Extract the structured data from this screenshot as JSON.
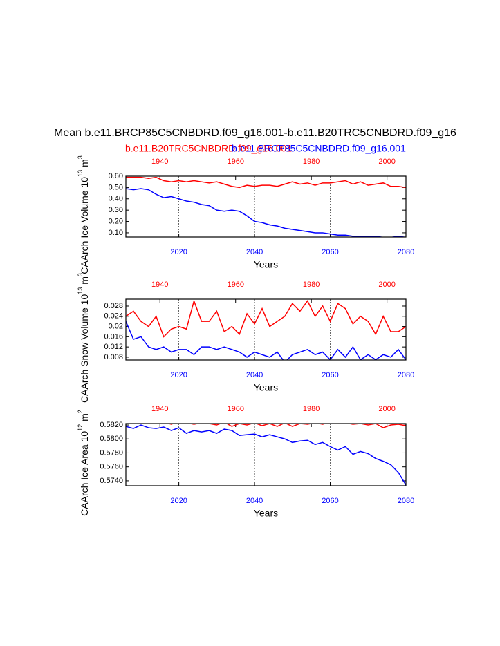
{
  "header": {
    "title": "Mean b.e11.BRCP85C5CNBDRD.f09_g16.001-b.e11.B20TRC5CNBDRD.f09_g16",
    "subtitles": [
      {
        "text": "b.e11.B20TRC5CNBDRD.f09_g16.001",
        "color": "#ff0000"
      },
      {
        "text": "b.e11.BRCP85C5CNBDRD.f09_g16.001",
        "color": "#0000ff"
      }
    ]
  },
  "chart_data": [
    {
      "type": "line",
      "ylabel": "CAArch Ice Volume 10",
      "ylabel_exponent": "13",
      "ylabel_unit": "m",
      "ylabel_unit_exponent": "3",
      "xlabel": "Years",
      "xlim": [
        2006,
        2080
      ],
      "xticks": [
        2020,
        2040,
        2060,
        2080
      ],
      "xtick_color": "#0000ff",
      "x2lim": [
        1931,
        2005
      ],
      "x2ticks": [
        1940,
        1960,
        1980,
        2000
      ],
      "x2tick_color": "#ff0000",
      "ylim": [
        0.063,
        0.6
      ],
      "yticks": [
        {
          "value": 0.1,
          "label": "0.10"
        },
        {
          "value": 0.2,
          "label": "0.20"
        },
        {
          "value": 0.3,
          "label": "0.30"
        },
        {
          "value": 0.4,
          "label": "0.40"
        },
        {
          "value": 0.5,
          "label": "0.50"
        },
        {
          "value": 0.6,
          "label": "0.60"
        }
      ],
      "grid": true,
      "series": [
        {
          "color": "#ff0000",
          "axis": "x2",
          "x": [
            1931,
            1933,
            1935,
            1937,
            1939,
            1941,
            1943,
            1945,
            1947,
            1949,
            1951,
            1953,
            1955,
            1957,
            1959,
            1961,
            1963,
            1965,
            1967,
            1969,
            1971,
            1973,
            1975,
            1977,
            1979,
            1981,
            1983,
            1985,
            1987,
            1989,
            1991,
            1993,
            1995,
            1997,
            1999,
            2001,
            2003,
            2005
          ],
          "values": [
            0.59,
            0.59,
            0.59,
            0.58,
            0.59,
            0.56,
            0.55,
            0.56,
            0.55,
            0.56,
            0.55,
            0.54,
            0.55,
            0.53,
            0.51,
            0.5,
            0.52,
            0.51,
            0.52,
            0.52,
            0.51,
            0.53,
            0.55,
            0.53,
            0.54,
            0.52,
            0.54,
            0.54,
            0.55,
            0.56,
            0.53,
            0.55,
            0.52,
            0.53,
            0.54,
            0.51,
            0.51,
            0.5
          ]
        },
        {
          "color": "#0000ff",
          "x": [
            2006,
            2008,
            2010,
            2012,
            2014,
            2016,
            2018,
            2020,
            2022,
            2024,
            2026,
            2028,
            2030,
            2032,
            2034,
            2036,
            2038,
            2040,
            2042,
            2044,
            2046,
            2048,
            2050,
            2052,
            2054,
            2056,
            2058,
            2060,
            2062,
            2064,
            2066,
            2068,
            2070,
            2072,
            2074,
            2076,
            2078,
            2080
          ],
          "values": [
            0.49,
            0.48,
            0.49,
            0.48,
            0.44,
            0.41,
            0.42,
            0.4,
            0.38,
            0.37,
            0.35,
            0.34,
            0.3,
            0.29,
            0.3,
            0.29,
            0.25,
            0.2,
            0.19,
            0.17,
            0.16,
            0.14,
            0.13,
            0.12,
            0.11,
            0.1,
            0.1,
            0.09,
            0.08,
            0.08,
            0.07,
            0.07,
            0.07,
            0.07,
            0.06,
            0.06,
            0.07,
            0.06
          ]
        }
      ]
    },
    {
      "type": "line",
      "ylabel": "CAArch Snow Volume 10",
      "ylabel_exponent": "13",
      "ylabel_unit": "m",
      "ylabel_unit_exponent": "3",
      "xlabel": "Years",
      "xlim": [
        2006,
        2080
      ],
      "xticks": [
        2020,
        2040,
        2060,
        2080
      ],
      "xtick_color": "#0000ff",
      "x2lim": [
        1931,
        2005
      ],
      "x2ticks": [
        1940,
        1960,
        1980,
        2000
      ],
      "x2tick_color": "#ff0000",
      "ylim": [
        0.0069,
        0.0307
      ],
      "yticks": [
        0.008,
        0.012,
        0.016,
        0.02,
        {
          "value": 0.024,
          "label": "0.024"
        },
        0.028
      ],
      "grid": true,
      "series": [
        {
          "color": "#ff0000",
          "axis": "x2",
          "x": [
            1931,
            1933,
            1935,
            1937,
            1939,
            1941,
            1943,
            1945,
            1947,
            1949,
            1951,
            1953,
            1955,
            1957,
            1959,
            1961,
            1963,
            1965,
            1967,
            1969,
            1971,
            1973,
            1975,
            1977,
            1979,
            1981,
            1983,
            1985,
            1987,
            1989,
            1991,
            1993,
            1995,
            1997,
            1999,
            2001,
            2003,
            2005
          ],
          "values": [
            0.024,
            0.026,
            0.022,
            0.02,
            0.024,
            0.016,
            0.019,
            0.02,
            0.019,
            0.03,
            0.022,
            0.022,
            0.026,
            0.018,
            0.02,
            0.017,
            0.025,
            0.021,
            0.027,
            0.02,
            0.022,
            0.024,
            0.029,
            0.026,
            0.03,
            0.024,
            0.028,
            0.022,
            0.029,
            0.027,
            0.021,
            0.024,
            0.022,
            0.017,
            0.024,
            0.018,
            0.018,
            0.02
          ]
        },
        {
          "color": "#0000ff",
          "x": [
            2006,
            2008,
            2010,
            2012,
            2014,
            2016,
            2018,
            2020,
            2022,
            2024,
            2026,
            2028,
            2030,
            2032,
            2034,
            2036,
            2038,
            2040,
            2042,
            2044,
            2046,
            2048,
            2050,
            2052,
            2054,
            2056,
            2058,
            2060,
            2062,
            2064,
            2066,
            2068,
            2070,
            2072,
            2074,
            2076,
            2078,
            2080
          ],
          "values": [
            0.022,
            0.015,
            0.016,
            0.012,
            0.011,
            0.012,
            0.01,
            0.011,
            0.011,
            0.009,
            0.012,
            0.012,
            0.011,
            0.012,
            0.011,
            0.01,
            0.008,
            0.01,
            0.009,
            0.008,
            0.01,
            0.006,
            0.009,
            0.01,
            0.011,
            0.009,
            0.01,
            0.007,
            0.011,
            0.008,
            0.012,
            0.007,
            0.009,
            0.007,
            0.009,
            0.008,
            0.011,
            0.007
          ]
        }
      ]
    },
    {
      "type": "line",
      "ylabel": "CAArch Ice Area 10",
      "ylabel_exponent": "12",
      "ylabel_unit": "m",
      "ylabel_unit_exponent": "2",
      "xlabel": "Years",
      "xlim": [
        2006,
        2080
      ],
      "xticks": [
        2020,
        2040,
        2060,
        2080
      ],
      "xtick_color": "#0000ff",
      "x2lim": [
        1931,
        2005
      ],
      "x2ticks": [
        1940,
        1960,
        1980,
        2000
      ],
      "x2tick_color": "#ff0000",
      "ylim": [
        0.5733,
        0.5822
      ],
      "yticks": [
        {
          "value": 0.574,
          "label": "0.5740"
        },
        {
          "value": 0.576,
          "label": "0.5760"
        },
        {
          "value": 0.578,
          "label": "0.5780"
        },
        {
          "value": 0.58,
          "label": "0.5800"
        },
        {
          "value": 0.582,
          "label": "0.5820"
        }
      ],
      "grid": true,
      "series": [
        {
          "color": "#ff0000",
          "axis": "x2",
          "x": [
            1931,
            1933,
            1935,
            1937,
            1939,
            1941,
            1943,
            1945,
            1947,
            1949,
            1951,
            1953,
            1955,
            1957,
            1959,
            1961,
            1963,
            1965,
            1967,
            1969,
            1971,
            1973,
            1975,
            1977,
            1979,
            1981,
            1983,
            1985,
            1987,
            1989,
            1991,
            1993,
            1995,
            1997,
            1999,
            2001,
            2003,
            2005
          ],
          "values": [
            0.5823,
            0.5822,
            0.5824,
            0.5823,
            0.5822,
            0.5824,
            0.5821,
            0.5825,
            0.5823,
            0.5821,
            0.5823,
            0.5822,
            0.582,
            0.5824,
            0.5818,
            0.5822,
            0.582,
            0.5823,
            0.5819,
            0.5822,
            0.5818,
            0.5823,
            0.5818,
            0.5822,
            0.5821,
            0.5823,
            0.5821,
            0.5824,
            0.5822,
            0.5823,
            0.5821,
            0.5822,
            0.582,
            0.5822,
            0.5816,
            0.582,
            0.5821,
            0.5819
          ]
        },
        {
          "color": "#0000ff",
          "x": [
            2006,
            2008,
            2010,
            2012,
            2014,
            2016,
            2018,
            2020,
            2022,
            2024,
            2026,
            2028,
            2030,
            2032,
            2034,
            2036,
            2038,
            2040,
            2042,
            2044,
            2046,
            2048,
            2050,
            2052,
            2054,
            2056,
            2058,
            2060,
            2062,
            2064,
            2066,
            2068,
            2070,
            2072,
            2074,
            2076,
            2078,
            2080
          ],
          "values": [
            0.5818,
            0.5815,
            0.582,
            0.5816,
            0.5815,
            0.5817,
            0.5812,
            0.5816,
            0.5808,
            0.5812,
            0.581,
            0.5812,
            0.5808,
            0.5814,
            0.5812,
            0.5805,
            0.5806,
            0.5807,
            0.5803,
            0.5806,
            0.5803,
            0.58,
            0.5795,
            0.5797,
            0.5798,
            0.5792,
            0.5795,
            0.5789,
            0.5784,
            0.5789,
            0.5778,
            0.5782,
            0.5779,
            0.5772,
            0.5768,
            0.5763,
            0.5752,
            0.5734
          ]
        }
      ]
    }
  ]
}
